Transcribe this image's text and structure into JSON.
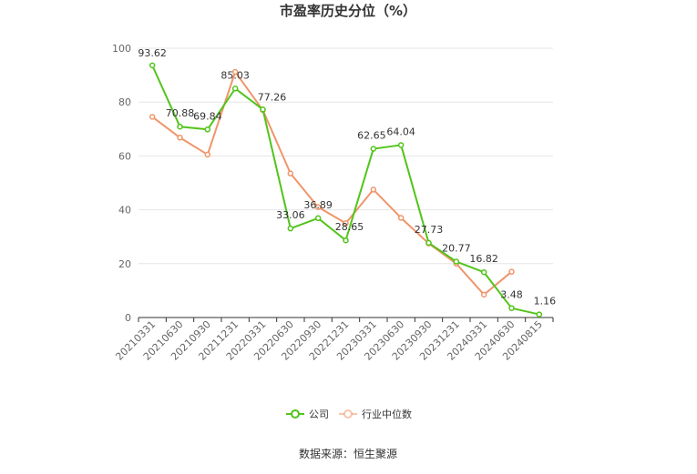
{
  "chart_data": {
    "type": "line",
    "title": "市盈率历史分位（%）",
    "source": "数据来源：恒生聚源",
    "x": [
      "20210331",
      "20210630",
      "20210930",
      "20211231",
      "20220331",
      "20220630",
      "20220930",
      "20221231",
      "20230331",
      "20230630",
      "20230930",
      "20231231",
      "20240331",
      "20240630",
      "20240815"
    ],
    "ylim": [
      0,
      100
    ],
    "yticks": [
      0,
      20,
      40,
      60,
      80,
      100
    ],
    "grid": true,
    "legend_position": "bottom",
    "series": [
      {
        "name": "公司",
        "color": "#52c41a",
        "values": [
          93.62,
          70.88,
          69.84,
          85.03,
          77.26,
          33.06,
          36.89,
          28.65,
          62.65,
          64.04,
          27.73,
          20.77,
          16.82,
          3.48,
          1.16
        ],
        "labels": [
          "93.62",
          "70.88",
          "69.84",
          "85.03",
          "77.26",
          "33.06",
          "36.89",
          "28.65",
          "62.65",
          "64.04",
          "27.73",
          "20.77",
          "16.82",
          "3.48",
          "1.16"
        ]
      },
      {
        "name": "行业中位数",
        "color": "#f0956a",
        "values": [
          74.5,
          66.8,
          60.5,
          91.2,
          77.0,
          53.5,
          41.0,
          35.0,
          47.5,
          37.0,
          27.5,
          20.0,
          8.5,
          17.0,
          null
        ]
      }
    ]
  }
}
